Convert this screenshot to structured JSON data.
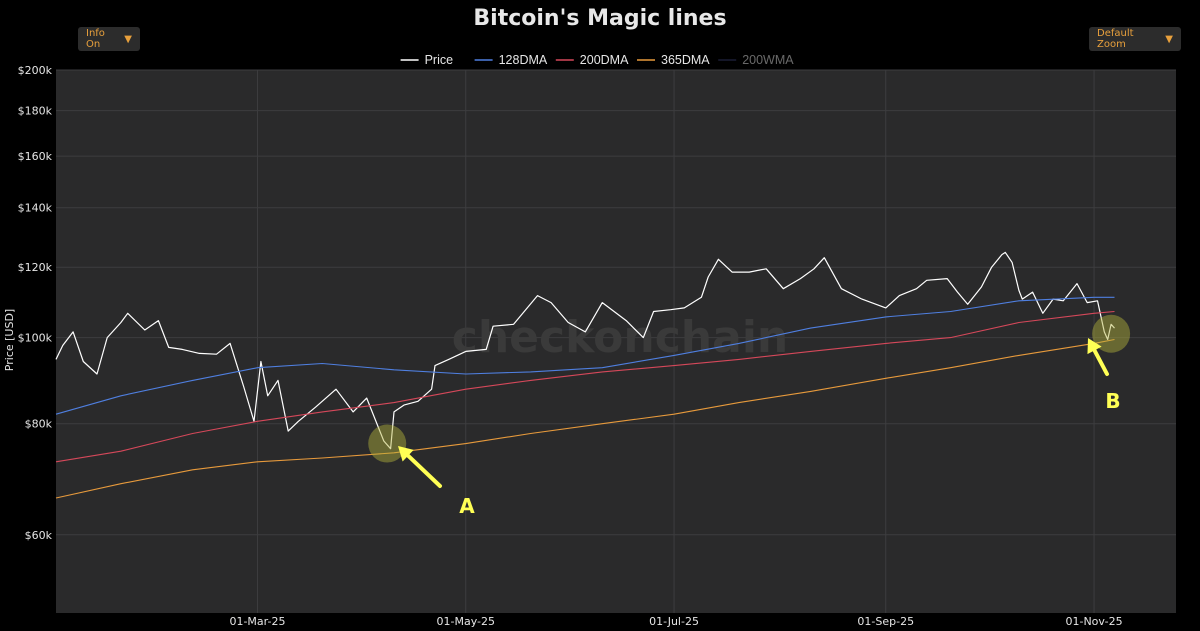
{
  "controls": {
    "info_label": "Info On",
    "zoom_label": "Default Zoom"
  },
  "chart_data": {
    "type": "line",
    "title": "Bitcoin's Magic lines",
    "ylabel": "Price [USD]",
    "xlabel": "",
    "y_scale": "log",
    "ylim": [
      49000,
      200000
    ],
    "xlim": [
      "2025-01-01",
      "2025-11-25"
    ],
    "y_ticks": [
      {
        "value": 60000,
        "label": "$60k"
      },
      {
        "value": 80000,
        "label": "$80k"
      },
      {
        "value": 100000,
        "label": "$100k"
      },
      {
        "value": 120000,
        "label": "$120k"
      },
      {
        "value": 140000,
        "label": "$140k"
      },
      {
        "value": 160000,
        "label": "$160k"
      },
      {
        "value": 180000,
        "label": "$180k"
      },
      {
        "value": 200000,
        "label": "$200k"
      }
    ],
    "x_ticks": [
      {
        "date": "2025-03-01",
        "label": "01-Mar-25"
      },
      {
        "date": "2025-05-01",
        "label": "01-May-25"
      },
      {
        "date": "2025-07-01",
        "label": "01-Jul-25"
      },
      {
        "date": "2025-09-01",
        "label": "01-Sep-25"
      },
      {
        "date": "2025-11-01",
        "label": "01-Nov-25"
      }
    ],
    "grid": true,
    "legend_position": "top-center",
    "watermark": "checkonchain",
    "series": [
      {
        "name": "Price",
        "color": "#ffffff",
        "width": 1.2,
        "points": [
          [
            "2025-01-01",
            94500
          ],
          [
            "2025-01-03",
            98000
          ],
          [
            "2025-01-06",
            101500
          ],
          [
            "2025-01-09",
            94000
          ],
          [
            "2025-01-13",
            91000
          ],
          [
            "2025-01-16",
            100000
          ],
          [
            "2025-01-20",
            104000
          ],
          [
            "2025-01-22",
            106500
          ],
          [
            "2025-01-27",
            102000
          ],
          [
            "2025-01-31",
            104500
          ],
          [
            "2025-02-03",
            97500
          ],
          [
            "2025-02-07",
            97000
          ],
          [
            "2025-02-12",
            96000
          ],
          [
            "2025-02-17",
            95800
          ],
          [
            "2025-02-21",
            98500
          ],
          [
            "2025-02-25",
            88000
          ],
          [
            "2025-02-28",
            80500
          ],
          [
            "2025-03-02",
            94000
          ],
          [
            "2025-03-04",
            86000
          ],
          [
            "2025-03-07",
            89500
          ],
          [
            "2025-03-10",
            78500
          ],
          [
            "2025-03-13",
            80500
          ],
          [
            "2025-03-18",
            83500
          ],
          [
            "2025-03-24",
            87500
          ],
          [
            "2025-03-29",
            82500
          ],
          [
            "2025-04-02",
            85500
          ],
          [
            "2025-04-07",
            76500
          ],
          [
            "2025-04-09",
            75000
          ],
          [
            "2025-04-10",
            82500
          ],
          [
            "2025-04-13",
            84000
          ],
          [
            "2025-04-17",
            84800
          ],
          [
            "2025-04-21",
            87500
          ],
          [
            "2025-04-22",
            93000
          ],
          [
            "2025-04-26",
            94500
          ],
          [
            "2025-05-01",
            96500
          ],
          [
            "2025-05-07",
            97000
          ],
          [
            "2025-05-09",
            103000
          ],
          [
            "2025-05-15",
            103500
          ],
          [
            "2025-05-22",
            111500
          ],
          [
            "2025-05-26",
            109500
          ],
          [
            "2025-05-31",
            104000
          ],
          [
            "2025-06-05",
            101500
          ],
          [
            "2025-06-10",
            109500
          ],
          [
            "2025-06-17",
            104500
          ],
          [
            "2025-06-22",
            100000
          ],
          [
            "2025-06-25",
            107000
          ],
          [
            "2025-06-30",
            107500
          ],
          [
            "2025-07-04",
            108000
          ],
          [
            "2025-07-09",
            111000
          ],
          [
            "2025-07-11",
            117000
          ],
          [
            "2025-07-14",
            122500
          ],
          [
            "2025-07-18",
            118500
          ],
          [
            "2025-07-23",
            118500
          ],
          [
            "2025-07-28",
            119500
          ],
          [
            "2025-08-02",
            113500
          ],
          [
            "2025-08-07",
            116500
          ],
          [
            "2025-08-11",
            119500
          ],
          [
            "2025-08-14",
            123000
          ],
          [
            "2025-08-19",
            113500
          ],
          [
            "2025-08-25",
            110500
          ],
          [
            "2025-09-01",
            108000
          ],
          [
            "2025-09-05",
            111500
          ],
          [
            "2025-09-10",
            113500
          ],
          [
            "2025-09-13",
            116000
          ],
          [
            "2025-09-19",
            116500
          ],
          [
            "2025-09-22",
            112500
          ],
          [
            "2025-09-25",
            109000
          ],
          [
            "2025-09-29",
            114000
          ],
          [
            "2025-10-02",
            120000
          ],
          [
            "2025-10-05",
            124000
          ],
          [
            "2025-10-06",
            124700
          ],
          [
            "2025-10-08",
            121500
          ],
          [
            "2025-10-10",
            113000
          ],
          [
            "2025-10-11",
            110500
          ],
          [
            "2025-10-14",
            112500
          ],
          [
            "2025-10-17",
            106500
          ],
          [
            "2025-10-20",
            110500
          ],
          [
            "2025-10-23",
            110000
          ],
          [
            "2025-10-27",
            115000
          ],
          [
            "2025-10-30",
            109500
          ],
          [
            "2025-11-02",
            110000
          ],
          [
            "2025-11-04",
            101500
          ],
          [
            "2025-11-05",
            99500
          ],
          [
            "2025-11-06",
            103500
          ],
          [
            "2025-11-07",
            102500
          ]
        ]
      },
      {
        "name": "128DMA",
        "color": "#4f7fe0",
        "width": 1.1,
        "points": [
          [
            "2025-01-01",
            82000
          ],
          [
            "2025-01-20",
            86000
          ],
          [
            "2025-02-10",
            89500
          ],
          [
            "2025-03-01",
            92500
          ],
          [
            "2025-03-20",
            93500
          ],
          [
            "2025-04-10",
            92000
          ],
          [
            "2025-05-01",
            91000
          ],
          [
            "2025-05-20",
            91500
          ],
          [
            "2025-06-10",
            92500
          ],
          [
            "2025-07-01",
            95500
          ],
          [
            "2025-07-20",
            98500
          ],
          [
            "2025-08-10",
            102500
          ],
          [
            "2025-09-01",
            105500
          ],
          [
            "2025-09-20",
            107000
          ],
          [
            "2025-10-10",
            110000
          ],
          [
            "2025-11-01",
            111000
          ],
          [
            "2025-11-07",
            111000
          ]
        ]
      },
      {
        "name": "200DMA",
        "color": "#d5485a",
        "width": 1.1,
        "points": [
          [
            "2025-01-01",
            72500
          ],
          [
            "2025-01-20",
            74500
          ],
          [
            "2025-02-10",
            78000
          ],
          [
            "2025-03-01",
            80500
          ],
          [
            "2025-03-20",
            82500
          ],
          [
            "2025-04-10",
            84500
          ],
          [
            "2025-05-01",
            87500
          ],
          [
            "2025-05-20",
            89500
          ],
          [
            "2025-06-10",
            91500
          ],
          [
            "2025-07-01",
            93000
          ],
          [
            "2025-07-20",
            94500
          ],
          [
            "2025-08-10",
            96500
          ],
          [
            "2025-09-01",
            98500
          ],
          [
            "2025-09-20",
            100000
          ],
          [
            "2025-10-10",
            104000
          ],
          [
            "2025-11-01",
            106500
          ],
          [
            "2025-11-07",
            107000
          ]
        ]
      },
      {
        "name": "365DMA",
        "color": "#e79a3c",
        "width": 1.1,
        "points": [
          [
            "2025-01-01",
            66000
          ],
          [
            "2025-01-20",
            68500
          ],
          [
            "2025-02-10",
            71000
          ],
          [
            "2025-03-01",
            72500
          ],
          [
            "2025-03-20",
            73200
          ],
          [
            "2025-04-10",
            74200
          ],
          [
            "2025-05-01",
            76000
          ],
          [
            "2025-05-20",
            78000
          ],
          [
            "2025-06-10",
            80000
          ],
          [
            "2025-07-01",
            82000
          ],
          [
            "2025-07-20",
            84500
          ],
          [
            "2025-08-10",
            87000
          ],
          [
            "2025-09-01",
            90000
          ],
          [
            "2025-09-20",
            92500
          ],
          [
            "2025-10-10",
            95500
          ],
          [
            "2025-11-01",
            98500
          ],
          [
            "2025-11-07",
            99500
          ]
        ]
      },
      {
        "name": "200WMA",
        "color": "#3d4275",
        "width": 1.1,
        "hidden": true,
        "points": []
      }
    ],
    "annotations": [
      {
        "label": "A",
        "date": "2025-04-08",
        "value": 76000
      },
      {
        "label": "B",
        "date": "2025-11-06",
        "value": 101000
      }
    ]
  }
}
